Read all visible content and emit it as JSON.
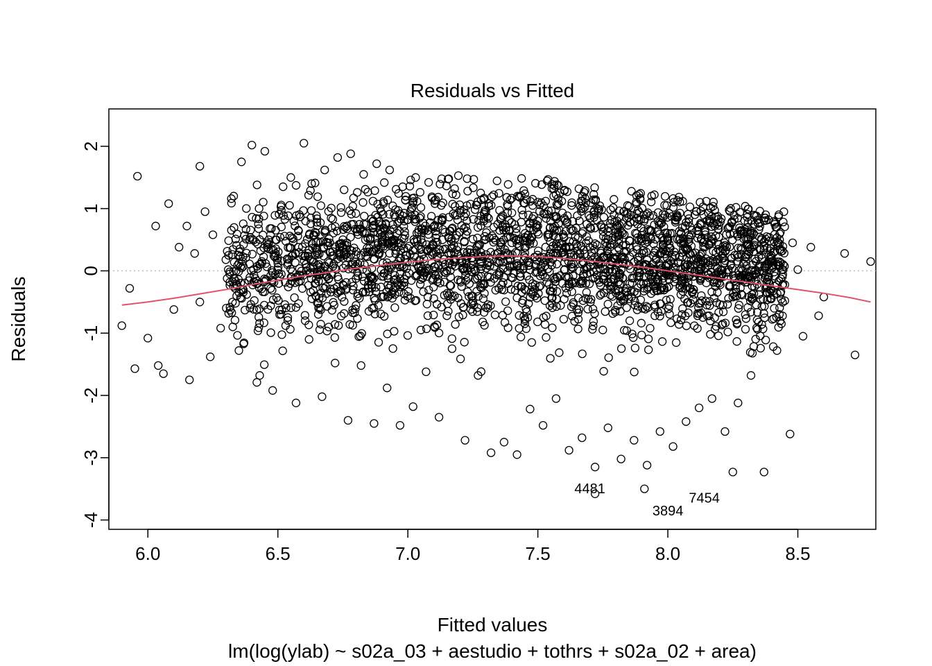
{
  "chart_data": {
    "type": "scatter",
    "title": "Residuals vs Fitted",
    "xlabel": "Fitted values",
    "xlabel_sub": "lm(log(ylab) ~ s02a_03 + aestudio + tothrs + s02a_02 + area)",
    "ylabel": "Residuals",
    "xlim": [
      5.85,
      8.8
    ],
    "ylim": [
      -4.15,
      2.6
    ],
    "x_ticks": [
      6.0,
      6.5,
      7.0,
      7.5,
      8.0,
      8.5
    ],
    "x_tick_labels": [
      "6.0",
      "6.5",
      "7.0",
      "7.5",
      "8.0",
      "8.5"
    ],
    "y_ticks": [
      -4,
      -3,
      -2,
      -1,
      0,
      1,
      2
    ],
    "y_tick_labels": [
      "-4",
      "-3",
      "-2",
      "-1",
      "0",
      "1",
      "2"
    ],
    "reference_line": {
      "y": 0,
      "style": "dotted",
      "color": "#bebebe"
    },
    "smooth_line": {
      "color": "#df536b",
      "x": [
        5.9,
        6.0,
        6.1,
        6.2,
        6.3,
        6.4,
        6.5,
        6.6,
        6.7,
        6.8,
        6.9,
        7.0,
        7.1,
        7.2,
        7.3,
        7.4,
        7.5,
        7.6,
        7.7,
        7.8,
        7.9,
        8.0,
        8.1,
        8.2,
        8.3,
        8.4,
        8.5,
        8.6,
        8.7,
        8.78
      ],
      "y": [
        -0.55,
        -0.5,
        -0.44,
        -0.37,
        -0.3,
        -0.22,
        -0.15,
        -0.08,
        -0.02,
        0.04,
        0.09,
        0.14,
        0.18,
        0.21,
        0.23,
        0.24,
        0.23,
        0.2,
        0.16,
        0.11,
        0.06,
        0.0,
        -0.06,
        -0.12,
        -0.18,
        -0.24,
        -0.3,
        -0.36,
        -0.43,
        -0.5
      ]
    },
    "labeled_points": [
      {
        "label": "4481",
        "x": 7.72,
        "y": -3.58
      },
      {
        "label": "3894",
        "x": 7.91,
        "y": -3.5
      },
      {
        "label": "7454",
        "x": 8.25,
        "y": -3.23
      }
    ],
    "extra_obs_labels": [
      {
        "label": "3894",
        "x": 8.0,
        "y": -3.93
      },
      {
        "label": "7454",
        "x": 8.14,
        "y": -3.72
      },
      {
        "label": "4481",
        "x": 7.7,
        "y": -3.57
      }
    ],
    "points_x": [
      5.9,
      5.93,
      5.95,
      5.96,
      6.0,
      6.03,
      6.04,
      6.06,
      6.08,
      6.1,
      6.12,
      6.15,
      6.16,
      6.18,
      6.2,
      6.2,
      6.22,
      6.24,
      6.25,
      6.28,
      6.3,
      6.31,
      6.33,
      6.35,
      6.36,
      6.38,
      6.4,
      6.42,
      6.43,
      6.45,
      6.47,
      6.48,
      6.5,
      6.52,
      6.53,
      6.55,
      6.57,
      6.58,
      6.6,
      6.62,
      6.63,
      6.65,
      6.67,
      6.68,
      6.7,
      6.72,
      6.73,
      6.75,
      6.77,
      6.78,
      6.8,
      6.82,
      6.83,
      6.85,
      6.87,
      6.88,
      6.9,
      6.92,
      6.93,
      6.95,
      6.97,
      6.98,
      7.0,
      7.02,
      7.03,
      7.05,
      7.07,
      7.08,
      7.1,
      7.12,
      7.13,
      7.15,
      7.17,
      7.18,
      7.2,
      7.22,
      7.23,
      7.25,
      7.27,
      7.28,
      7.3,
      7.32,
      7.33,
      7.35,
      7.37,
      7.38,
      7.4,
      7.42,
      7.43,
      7.45,
      7.47,
      7.48,
      7.5,
      7.52,
      7.53,
      7.55,
      7.57,
      7.58,
      7.6,
      7.62,
      7.63,
      7.65,
      7.67,
      7.68,
      7.7,
      7.72,
      7.73,
      7.75,
      7.77,
      7.78,
      7.8,
      7.82,
      7.83,
      7.85,
      7.87,
      7.88,
      7.9,
      7.92,
      7.93,
      7.95,
      7.97,
      7.98,
      8.0,
      8.02,
      8.03,
      8.05,
      8.07,
      8.08,
      8.1,
      8.12,
      8.13,
      8.15,
      8.17,
      8.18,
      8.2,
      8.22,
      8.23,
      8.25,
      8.27,
      8.28,
      8.3,
      8.32,
      8.33,
      8.35,
      8.37,
      8.38,
      8.4,
      8.42,
      8.43,
      8.45,
      8.47,
      8.48,
      8.5,
      8.52,
      8.55,
      8.58,
      8.6,
      8.68,
      8.72,
      8.78
    ],
    "points_y": [
      -0.88,
      -0.28,
      -1.57,
      1.52,
      -1.08,
      0.72,
      -1.52,
      -1.65,
      1.08,
      -0.62,
      0.38,
      0.72,
      -1.75,
      0.28,
      -0.5,
      1.68,
      0.95,
      -1.38,
      0.58,
      -0.92,
      0.18,
      0.25,
      1.2,
      -1.28,
      1.75,
      -0.38,
      2.02,
      1.38,
      -1.68,
      1.92,
      0.68,
      -1.92,
      0.12,
      1.35,
      -0.88,
      1.5,
      -2.12,
      0.38,
      2.05,
      -1.1,
      1.4,
      0.78,
      -2.02,
      1.62,
      0.45,
      -1.48,
      1.82,
      -0.22,
      -2.4,
      1.88,
      0.92,
      -1.52,
      1.55,
      -0.65,
      -2.45,
      1.72,
      0.55,
      -1.88,
      1.62,
      -0.38,
      -2.48,
      1.35,
      0.82,
      -2.18,
      1.5,
      -0.95,
      -1.62,
      1.42,
      0.28,
      -2.35,
      1.48,
      -0.72,
      -1.25,
      1.32,
      0.62,
      -2.72,
      1.28,
      -0.48,
      -1.68,
      1.25,
      0.95,
      -2.92,
      1.22,
      -0.28,
      -2.75,
      1.18,
      0.45,
      -2.95,
      1.18,
      -0.85,
      -2.22,
      1.15,
      0.72,
      -2.48,
      1.12,
      -0.32,
      -2.05,
      1.08,
      0.55,
      -2.88,
      1.05,
      -0.62,
      -2.68,
      1.02,
      0.38,
      -3.15,
      1.0,
      -0.95,
      -2.52,
      0.98,
      0.62,
      -3.02,
      0.95,
      -0.45,
      -2.72,
      0.92,
      0.28,
      -3.12,
      0.88,
      -0.72,
      -2.58,
      0.85,
      0.48,
      -2.82,
      0.82,
      -0.38,
      -2.42,
      0.78,
      0.18,
      -2.2,
      0.75,
      -0.55,
      -2.05,
      0.72,
      0.32,
      -2.58,
      0.68,
      -0.42,
      -2.12,
      0.65,
      0.15,
      -1.68,
      0.6,
      -0.38,
      -3.23,
      0.55,
      0.08,
      -1.28,
      0.5,
      -0.48,
      -2.62,
      0.45,
      0.02,
      -1.05,
      0.38,
      -0.72,
      -0.42,
      0.28,
      -1.35,
      0.15,
      -0.42,
      -1.3,
      -0.55,
      -1.0,
      -0.85,
      -0.37
    ],
    "dense_clouds": [
      {
        "x_from": 6.3,
        "x_to": 8.45,
        "n": 2600
      }
    ]
  }
}
